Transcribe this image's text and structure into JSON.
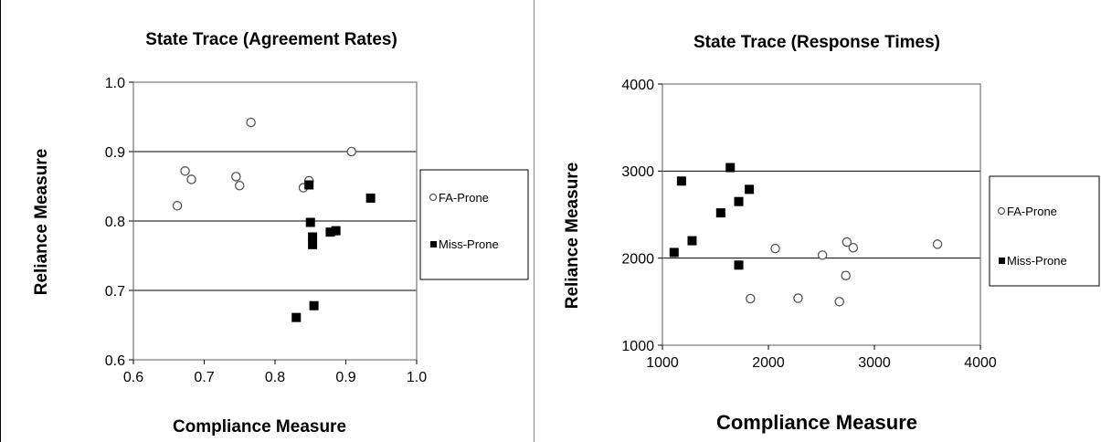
{
  "chart_data": [
    {
      "type": "scatter",
      "title": "State Trace (Agreement Rates)",
      "xlabel": "Compliance Measure",
      "ylabel": "Reliance Measure",
      "xlim": [
        0.6,
        1.0
      ],
      "ylim": [
        0.6,
        1.0
      ],
      "xticks": [
        "0.6",
        "0.7",
        "0.8",
        "0.9",
        "1.0"
      ],
      "yticks": [
        "0.6",
        "0.7",
        "0.8",
        "0.9",
        "1.0"
      ],
      "grid": "horizontal",
      "legend_position": "right",
      "series": [
        {
          "name": "FA-Prone",
          "marker": "open-circle",
          "points": [
            [
              0.662,
              0.822
            ],
            [
              0.673,
              0.872
            ],
            [
              0.682,
              0.86
            ],
            [
              0.745,
              0.864
            ],
            [
              0.75,
              0.851
            ],
            [
              0.766,
              0.942
            ],
            [
              0.84,
              0.848
            ],
            [
              0.848,
              0.858
            ],
            [
              0.908,
              0.9
            ]
          ]
        },
        {
          "name": "Miss-Prone",
          "marker": "filled-square",
          "points": [
            [
              0.848,
              0.852
            ],
            [
              0.85,
              0.798
            ],
            [
              0.853,
              0.777
            ],
            [
              0.853,
              0.766
            ],
            [
              0.878,
              0.784
            ],
            [
              0.886,
              0.786
            ],
            [
              0.935,
              0.833
            ],
            [
              0.83,
              0.661
            ],
            [
              0.855,
              0.678
            ]
          ]
        }
      ]
    },
    {
      "type": "scatter",
      "title": "State Trace (Response Times)",
      "xlabel": "Compliance Measure",
      "ylabel": "Reliance Measure",
      "xlim": [
        1000,
        4000
      ],
      "ylim": [
        1000,
        4000
      ],
      "xticks": [
        "1000",
        "2000",
        "3000",
        "4000"
      ],
      "yticks": [
        "1000",
        "2000",
        "3000",
        "4000"
      ],
      "grid": "horizontal",
      "legend_position": "right",
      "series": [
        {
          "name": "FA-Prone",
          "marker": "open-circle",
          "points": [
            [
              2065,
              2110
            ],
            [
              2510,
              2035
            ],
            [
              2740,
              2185
            ],
            [
              2800,
              2120
            ],
            [
              3595,
              2160
            ],
            [
              2730,
              1800
            ],
            [
              1830,
              1535
            ],
            [
              2280,
              1540
            ],
            [
              2670,
              1500
            ]
          ]
        },
        {
          "name": "Miss-Prone",
          "marker": "filled-square",
          "points": [
            [
              1110,
              2065
            ],
            [
              1180,
              2885
            ],
            [
              1280,
              2200
            ],
            [
              1550,
              2520
            ],
            [
              1640,
              3040
            ],
            [
              1720,
              2650
            ],
            [
              1720,
              1920
            ],
            [
              1820,
              2790
            ]
          ]
        }
      ]
    }
  ]
}
